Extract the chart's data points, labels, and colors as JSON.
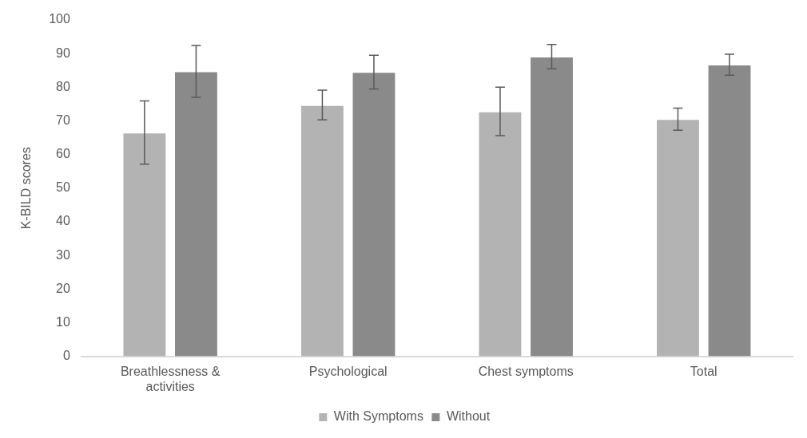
{
  "chart_data": {
    "type": "bar",
    "ylabel": "K-BILD scores",
    "categories": [
      "Breathlessness & activities",
      "Psychological",
      "Chest symptoms",
      "Total"
    ],
    "series": [
      {
        "name": "With Symptoms",
        "color": "#b3b3b3",
        "values": [
          66.5,
          74.7,
          72.8,
          70.5
        ],
        "errors": [
          9.4,
          4.4,
          7.2,
          3.3
        ]
      },
      {
        "name": "Without",
        "color": "#8a8a8a",
        "values": [
          84.7,
          84.5,
          89.1,
          86.7
        ],
        "errors": [
          7.7,
          5,
          3.6,
          3.1
        ]
      }
    ],
    "ylim": [
      0,
      100
    ],
    "yticks": [
      0,
      10,
      20,
      30,
      40,
      50,
      60,
      70,
      80,
      90,
      100
    ],
    "grid": false,
    "legend": "bottom"
  }
}
